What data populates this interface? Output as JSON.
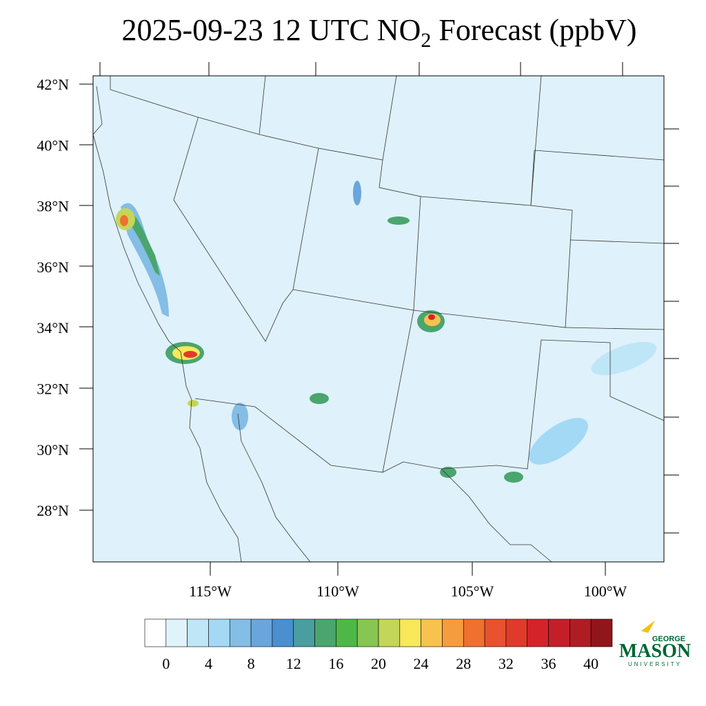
{
  "title": {
    "before": "2025-09-23 12 UTC NO",
    "sub": "2",
    "after": " Forecast (ppbV)"
  },
  "latitude_labels": [
    "42°N",
    "40°N",
    "38°N",
    "36°N",
    "34°N",
    "32°N",
    "30°N",
    "28°N"
  ],
  "longitude_labels": [
    "115°W",
    "110°W",
    "105°W",
    "100°W"
  ],
  "colorbar": {
    "colors": [
      "#ffffff",
      "#e0f3fb",
      "#bfe6f7",
      "#a3d9f5",
      "#84bde5",
      "#6aa6dc",
      "#4a8fd0",
      "#4a9ea0",
      "#4aa56e",
      "#4db848",
      "#87c650",
      "#c3d65a",
      "#f8e85a",
      "#f8c24e",
      "#f59d3e",
      "#f07030",
      "#e8522c",
      "#e03a2a",
      "#d4242a",
      "#c41f28",
      "#b01c24",
      "#90161c"
    ],
    "ticks": [
      0,
      4,
      8,
      12,
      16,
      20,
      24,
      28,
      32,
      36,
      40
    ]
  },
  "logo": {
    "top": "GEORGE",
    "main": "MASON",
    "bottom": "UNIVERSITY"
  }
}
